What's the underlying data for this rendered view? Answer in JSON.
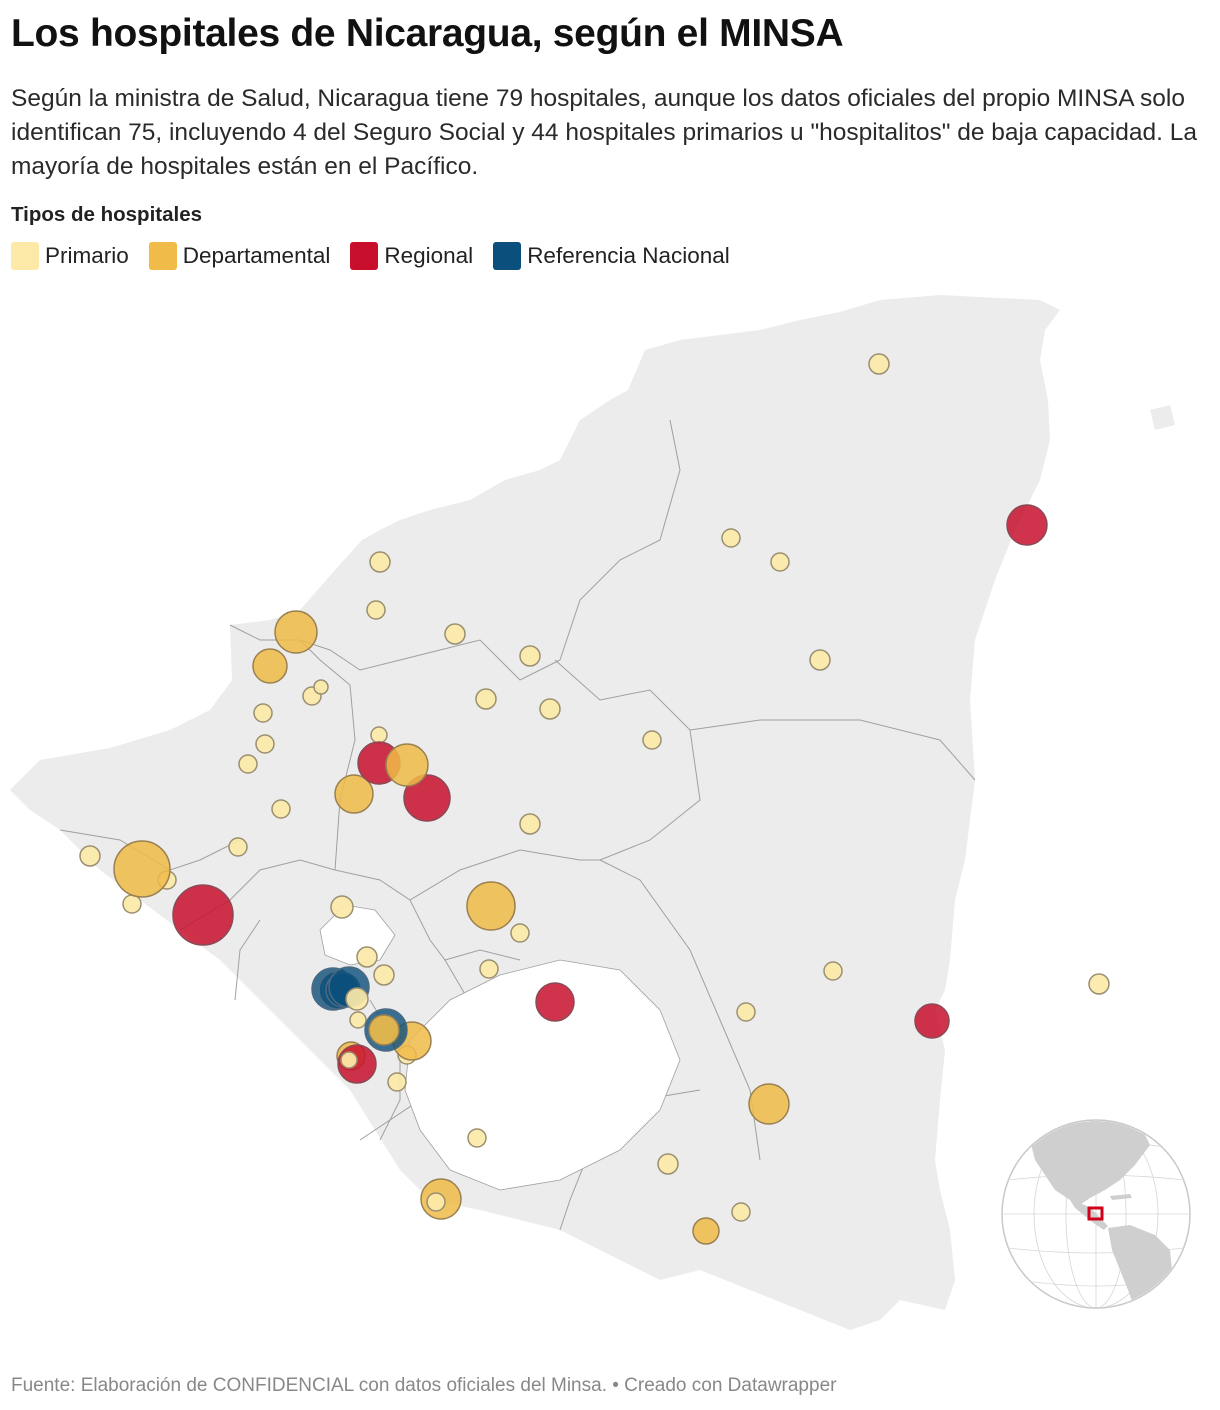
{
  "title": "Los hospitales de Nicaragua, según el MINSA",
  "subtitle": "Según la ministra de Salud, Nicaragua tiene 79 hospitales, aunque los datos oficiales del propio MINSA solo identifican 75, incluyendo 4 del Seguro Social y 44 hospitales primarios u \"hospitalitos\" de baja capacidad. La mayoría de hospitales están en el Pacífico.",
  "legend": {
    "title": "Tipos de hospitales",
    "items": [
      {
        "key": "primario",
        "label": "Primario",
        "color": "#fce9a8"
      },
      {
        "key": "departamental",
        "label": "Departamental",
        "color": "#f0bb48"
      },
      {
        "key": "regional",
        "label": "Regional",
        "color": "#c8102e"
      },
      {
        "key": "nacional",
        "label": "Referencia Nacional",
        "color": "#0b4f7c"
      }
    ]
  },
  "footer": "Fuente: Elaboración de CONFIDENCIAL con datos oficiales del Minsa. • Creado con Datawrapper",
  "map": {
    "land_color": "#ececec",
    "border_color": "#a0a0a0",
    "locator_highlight_color": "#d0021b"
  }
}
